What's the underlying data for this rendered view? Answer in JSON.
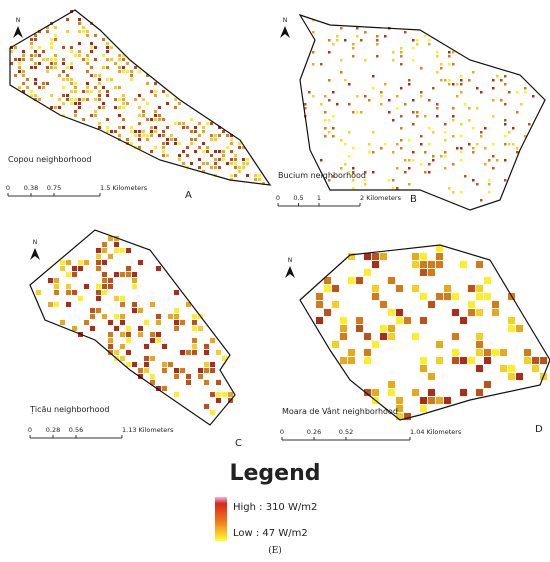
{
  "panels": [
    {
      "name": "Copou neighborhood",
      "label": "A",
      "north": "N",
      "scale": [
        "0",
        "0.38",
        "0.75",
        "1.5 Kilometers"
      ]
    },
    {
      "name": "Bucium neighborhood",
      "label": "B",
      "north": "N",
      "scale": [
        "0",
        "0.5",
        "1",
        "2 Kilometers"
      ]
    },
    {
      "name": "Țicău neighborhood",
      "label": "C",
      "north": "N",
      "scale": [
        "0",
        "0.28",
        "0.56",
        "1.13 Kilometers"
      ]
    },
    {
      "name": "Moara de Vânt neighborhood",
      "label": "D",
      "north": "N",
      "scale": [
        "0",
        "0.26",
        "0.52",
        "1.04 Kilometers"
      ]
    }
  ],
  "legend": {
    "title": "Legend",
    "high": "High : 310 W/m2",
    "low": "Low : 47 W/m2"
  },
  "caption": "(E)"
}
